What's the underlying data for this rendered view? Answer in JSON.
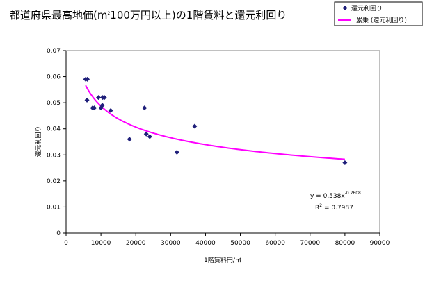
{
  "chart_data": {
    "type": "scatter",
    "title_parts": {
      "pre": "都道府県最高地価(m",
      "sup": "2",
      "post": "100万円以上)の1階賃料と還元利回り"
    },
    "xlabel": "1階賃料円/㎡",
    "ylabel": "還元利回り",
    "xlim": [
      0,
      90000
    ],
    "ylim": [
      0,
      0.07
    ],
    "x_ticks": [
      0,
      10000,
      20000,
      30000,
      40000,
      50000,
      60000,
      70000,
      80000,
      90000
    ],
    "y_ticks": [
      0,
      0.01,
      0.02,
      0.03,
      0.04,
      0.05,
      0.06,
      0.07
    ],
    "x_tick_labels": [
      "0",
      "10000",
      "20000",
      "30000",
      "40000",
      "50000",
      "60000",
      "70000",
      "80000",
      "90000"
    ],
    "y_tick_labels": [
      "0",
      "0.01",
      "0.02",
      "0.03",
      "0.04",
      "0.05",
      "0.06",
      "0.07"
    ],
    "grid": false,
    "legend": {
      "placement": "top-right",
      "entries": [
        {
          "label": "還元利回り",
          "marker": "diamond",
          "color": "#1f1f7a"
        },
        {
          "label": "累乗 (還元利回り)",
          "marker": "line",
          "color": "#ff00ff"
        }
      ]
    },
    "series": [
      {
        "name": "還元利回り",
        "marker_color": "#1f1f7a",
        "points": [
          [
            5600,
            0.059
          ],
          [
            6100,
            0.059
          ],
          [
            6000,
            0.051
          ],
          [
            7600,
            0.048
          ],
          [
            8100,
            0.048
          ],
          [
            9300,
            0.052
          ],
          [
            10000,
            0.048
          ],
          [
            10400,
            0.049
          ],
          [
            10500,
            0.052
          ],
          [
            11000,
            0.052
          ],
          [
            12800,
            0.047
          ],
          [
            18200,
            0.036
          ],
          [
            22500,
            0.048
          ],
          [
            23000,
            0.038
          ],
          [
            24000,
            0.037
          ],
          [
            31800,
            0.031
          ],
          [
            36900,
            0.041
          ],
          [
            80000,
            0.027
          ]
        ]
      }
    ],
    "trendline": {
      "name": "累乗 (還元利回り)",
      "type": "power",
      "coef": 0.538,
      "exponent": -0.2608,
      "x_range": [
        5600,
        80000
      ],
      "color": "#ff00ff",
      "equation": {
        "pre": "y = 0.538x",
        "exp": "-0.2608"
      },
      "r2": {
        "pre": "R",
        "sup": "2",
        "post": " = 0.7987"
      }
    }
  }
}
